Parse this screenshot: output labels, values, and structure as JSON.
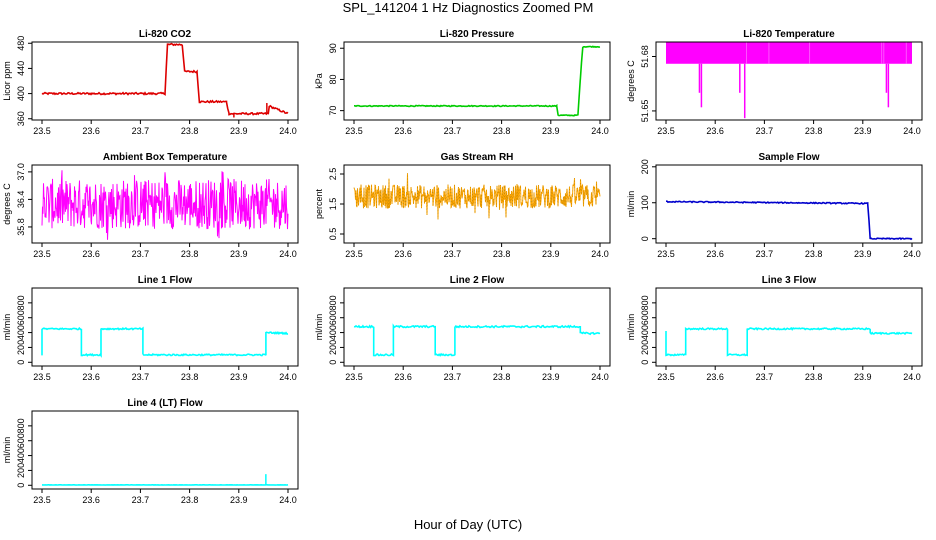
{
  "page": {
    "title": "SPL_141204  1 Hz Diagnostics Zoomed PM",
    "xlabel": "Hour of Day (UTC)"
  },
  "colors": {
    "red": "#dd0000",
    "green": "#00cc00",
    "magenta": "#ff00ff",
    "orange": "#ffa500",
    "blue": "#0000cc",
    "cyan": "#00ffff"
  },
  "chart_data": [
    {
      "type": "line",
      "title": "Li-820 CO2",
      "ylabel": "Licor ppm",
      "xlim": [
        23.5,
        24.0
      ],
      "ylim": [
        358,
        482
      ],
      "xticks": [
        "23.5",
        "23.6",
        "23.7",
        "23.8",
        "23.9",
        "24.0"
      ],
      "yticks": [
        360,
        400,
        440,
        480
      ],
      "color": "red",
      "noise": 1.5,
      "x": [
        23.5,
        23.75,
        23.755,
        23.785,
        23.79,
        23.815,
        23.82,
        23.875,
        23.88,
        23.96,
        23.962,
        24.0
      ],
      "y": [
        400,
        400,
        478,
        478,
        435,
        435,
        387,
        387,
        368,
        368,
        380,
        368
      ],
      "spikes": [
        [
          23.957,
          385
        ],
        [
          23.89,
          362
        ]
      ]
    },
    {
      "type": "line",
      "title": "Li-820 Pressure",
      "ylabel": "kPa",
      "xlim": [
        23.5,
        24.0
      ],
      "ylim": [
        67,
        92
      ],
      "xticks": [
        "23.5",
        "23.6",
        "23.7",
        "23.8",
        "23.9",
        "24.0"
      ],
      "yticks": [
        70,
        80,
        90
      ],
      "color": "green",
      "noise": 0.15,
      "x": [
        23.5,
        23.912,
        23.915,
        23.955,
        23.96,
        23.965,
        24.0
      ],
      "y": [
        71.5,
        71.5,
        68.5,
        68.5,
        80,
        90.5,
        90.5
      ],
      "spikes": []
    },
    {
      "type": "band",
      "title": "Li-820 Temperature",
      "ylabel": "degrees C",
      "xlim": [
        23.5,
        24.0
      ],
      "ylim": [
        51.645,
        51.688
      ],
      "xticks": [
        "23.5",
        "23.6",
        "23.7",
        "23.8",
        "23.9",
        "24.0"
      ],
      "yticks": [
        "51.65",
        "51.68"
      ],
      "color": "magenta",
      "band": [
        51.676,
        51.688
      ],
      "spikes": [
        [
          23.568,
          51.66
        ],
        [
          23.572,
          51.652
        ],
        [
          23.65,
          51.66
        ],
        [
          23.66,
          51.646
        ],
        [
          23.685,
          51.7
        ],
        [
          23.845,
          51.7
        ],
        [
          23.948,
          51.66
        ],
        [
          23.952,
          51.652
        ]
      ]
    },
    {
      "type": "noise",
      "title": "Ambient Box Temperature",
      "ylabel": "degrees C",
      "xlim": [
        23.5,
        24.0
      ],
      "ylim": [
        35.45,
        37.15
      ],
      "xticks": [
        "23.5",
        "23.6",
        "23.7",
        "23.8",
        "23.9",
        "24.0"
      ],
      "yticks": [
        "35.8",
        "36.4",
        "37.0"
      ],
      "color": "magenta",
      "center": 36.3,
      "amp": 0.55,
      "max_amp": 0.8
    },
    {
      "type": "noise",
      "title": "Gas Stream RH",
      "ylabel": "percent",
      "xlim": [
        23.5,
        24.0
      ],
      "ylim": [
        0.2,
        2.8
      ],
      "xticks": [
        "23.5",
        "23.6",
        "23.7",
        "23.8",
        "23.9",
        "24.0"
      ],
      "yticks": [
        "0.5",
        "1.5",
        "2.5"
      ],
      "color": "orange",
      "points": true,
      "center": 1.75,
      "amp": 0.4,
      "max_amp": 0.8
    },
    {
      "type": "line",
      "title": "Sample Flow",
      "ylabel": "ml/min",
      "xlim": [
        23.5,
        24.0
      ],
      "ylim": [
        -12,
        205
      ],
      "xticks": [
        "23.5",
        "23.6",
        "23.7",
        "23.8",
        "23.9",
        "24.0"
      ],
      "yticks": [
        0,
        100,
        200
      ],
      "color": "blue",
      "noise": 1.5,
      "x": [
        23.5,
        23.91,
        23.915,
        24.0
      ],
      "y": [
        103,
        98,
        0,
        0
      ],
      "spikes": []
    },
    {
      "type": "line",
      "title": "Line 1 Flow",
      "ylabel": "ml/min",
      "xlim": [
        23.5,
        24.0
      ],
      "ylim": [
        -50,
        1000
      ],
      "xticks": [
        "23.5",
        "23.6",
        "23.7",
        "23.8",
        "23.9",
        "24.0"
      ],
      "yticks": [
        0,
        200,
        400,
        600,
        800
      ],
      "color": "cyan",
      "noise": 10,
      "x": [
        23.5,
        23.5,
        23.58,
        23.58,
        23.62,
        23.62,
        23.705,
        23.705,
        23.955,
        23.955,
        24.0
      ],
      "y": [
        100,
        450,
        450,
        100,
        100,
        450,
        450,
        100,
        100,
        400,
        390
      ],
      "spikes": []
    },
    {
      "type": "line",
      "title": "Line 2 Flow",
      "ylabel": "ml/min",
      "xlim": [
        23.5,
        24.0
      ],
      "ylim": [
        -50,
        1000
      ],
      "xticks": [
        "23.5",
        "23.6",
        "23.7",
        "23.8",
        "23.9",
        "24.0"
      ],
      "yticks": [
        0,
        200,
        400,
        600,
        800
      ],
      "color": "cyan",
      "noise": 12,
      "x": [
        23.5,
        23.54,
        23.54,
        23.58,
        23.58,
        23.665,
        23.665,
        23.705,
        23.705,
        23.96,
        23.96,
        24.0
      ],
      "y": [
        480,
        480,
        100,
        100,
        480,
        480,
        100,
        100,
        480,
        480,
        390,
        390
      ],
      "spikes": []
    },
    {
      "type": "line",
      "title": "Line 3 Flow",
      "ylabel": "ml/min",
      "xlim": [
        23.5,
        24.0
      ],
      "ylim": [
        -50,
        1000
      ],
      "xticks": [
        "23.5",
        "23.6",
        "23.7",
        "23.8",
        "23.9",
        "24.0"
      ],
      "yticks": [
        0,
        200,
        400,
        600,
        800
      ],
      "color": "cyan",
      "noise": 10,
      "x": [
        23.5,
        23.5,
        23.54,
        23.54,
        23.625,
        23.625,
        23.665,
        23.665,
        23.915,
        23.915,
        24.0
      ],
      "y": [
        420,
        100,
        100,
        450,
        450,
        100,
        100,
        450,
        450,
        390,
        390
      ],
      "spikes": []
    },
    {
      "type": "line",
      "title": "Line 4 (LT) Flow",
      "ylabel": "ml/min",
      "xlim": [
        23.5,
        24.0
      ],
      "ylim": [
        -50,
        1000
      ],
      "xticks": [
        "23.5",
        "23.6",
        "23.7",
        "23.8",
        "23.9",
        "24.0"
      ],
      "yticks": [
        0,
        200,
        400,
        600,
        800
      ],
      "color": "cyan",
      "noise": 2,
      "x": [
        23.5,
        24.0
      ],
      "y": [
        5,
        5
      ],
      "spikes": [
        [
          23.955,
          150
        ]
      ]
    }
  ]
}
